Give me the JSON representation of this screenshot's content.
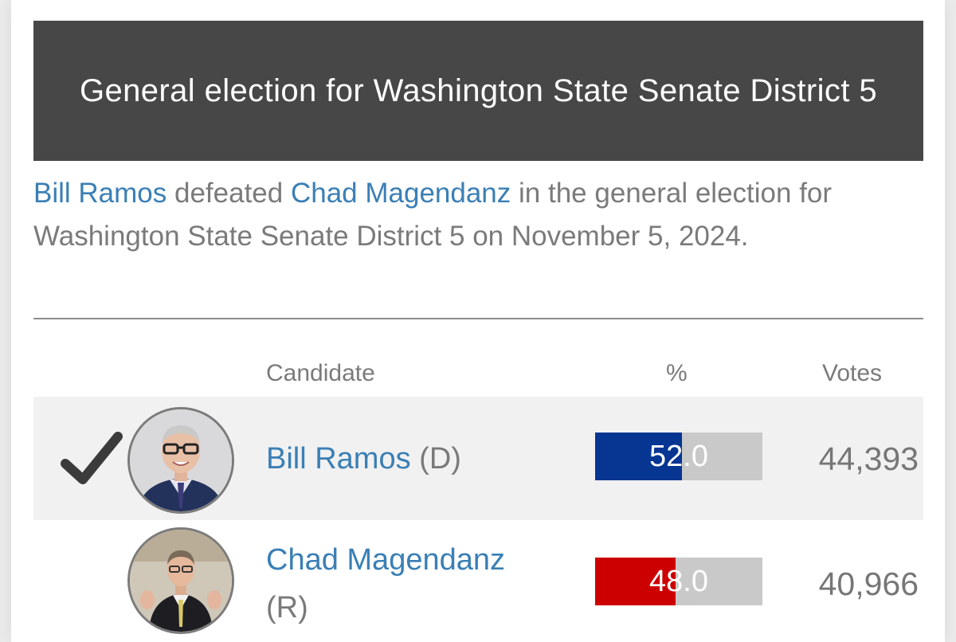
{
  "header": {
    "title": "General election for Washington State Senate District 5"
  },
  "summary": {
    "winner": "Bill Ramos",
    "verb": " defeated ",
    "loser": "Chad Magendanz",
    "rest": " in the general election for Washington State Senate District 5 on November 5, 2024."
  },
  "table": {
    "columns": [
      "Candidate",
      "%",
      "Votes"
    ],
    "rows": [
      {
        "winner": true,
        "name": "Bill Ramos",
        "party": "(D)",
        "percent": 52.0,
        "percent_label": "52.0",
        "votes": "44,393",
        "color": "#063592"
      },
      {
        "winner": false,
        "name": "Chad Magendanz",
        "party": "(R)",
        "percent": 48.0,
        "percent_label": "48.0",
        "votes": "40,966",
        "color": "#cc0000"
      }
    ]
  },
  "icons": {
    "winner_mark": "checkmark-icon",
    "photo": "candidate-photo"
  }
}
